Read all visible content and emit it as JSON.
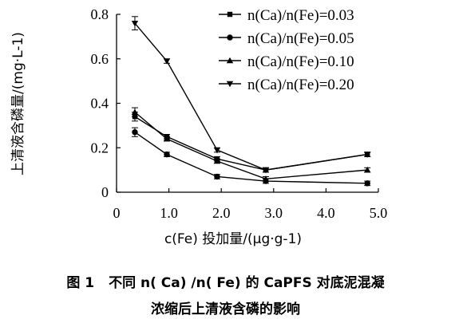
{
  "chart_data": {
    "type": "line",
    "xlabel": "c(Fe) 投加量/(μg·g-1)",
    "ylabel": "上清液含磷量/(mg·L-1)",
    "xlim": [
      0,
      5.0
    ],
    "ylim": [
      0,
      0.8
    ],
    "xticks": [
      "0",
      "1.0",
      "2.0",
      "3.0",
      "4.0",
      "5.0"
    ],
    "xtick_values": [
      0,
      1,
      2,
      3,
      4,
      5
    ],
    "yticks": [
      "0",
      "0.2",
      "0.4",
      "0.6",
      "0.8"
    ],
    "ytick_values": [
      0,
      0.2,
      0.4,
      0.6,
      0.8
    ],
    "legend_position": "top-right",
    "x": [
      0.35,
      0.96,
      1.92,
      2.85,
      4.79
    ],
    "series": [
      {
        "name": "n(Ca)/n(Fe)=0.03",
        "marker": "square",
        "values": [
          0.34,
          0.25,
          0.15,
          0.1,
          0.17
        ],
        "errors": [
          0.02,
          0.01,
          0.01,
          0.01,
          0.01
        ]
      },
      {
        "name": "n(Ca)/n(Fe)=0.05",
        "marker": "circle",
        "values": [
          0.27,
          0.17,
          0.07,
          0.05,
          0.04
        ],
        "errors": [
          0.02,
          0.01,
          0.01,
          0.01,
          0.01
        ]
      },
      {
        "name": "n(Ca)/n(Fe)=0.10",
        "marker": "triangle-up",
        "values": [
          0.36,
          0.24,
          0.14,
          0.06,
          0.1
        ],
        "errors": [
          0.02,
          0.01,
          0.01,
          0.01,
          0.01
        ]
      },
      {
        "name": "n(Ca)/n(Fe)=0.20",
        "marker": "triangle-down",
        "values": [
          0.76,
          0.59,
          0.19,
          0.1,
          0.17
        ],
        "errors": [
          0.03,
          0.01,
          0.01,
          0.01,
          0.01
        ]
      }
    ]
  },
  "caption": {
    "label": "图 1",
    "line1": "不同 n( Ca) /n( Fe) 的 CaPFS 对底泥混凝",
    "line2": "浓缩后上清液含磷的影响"
  }
}
